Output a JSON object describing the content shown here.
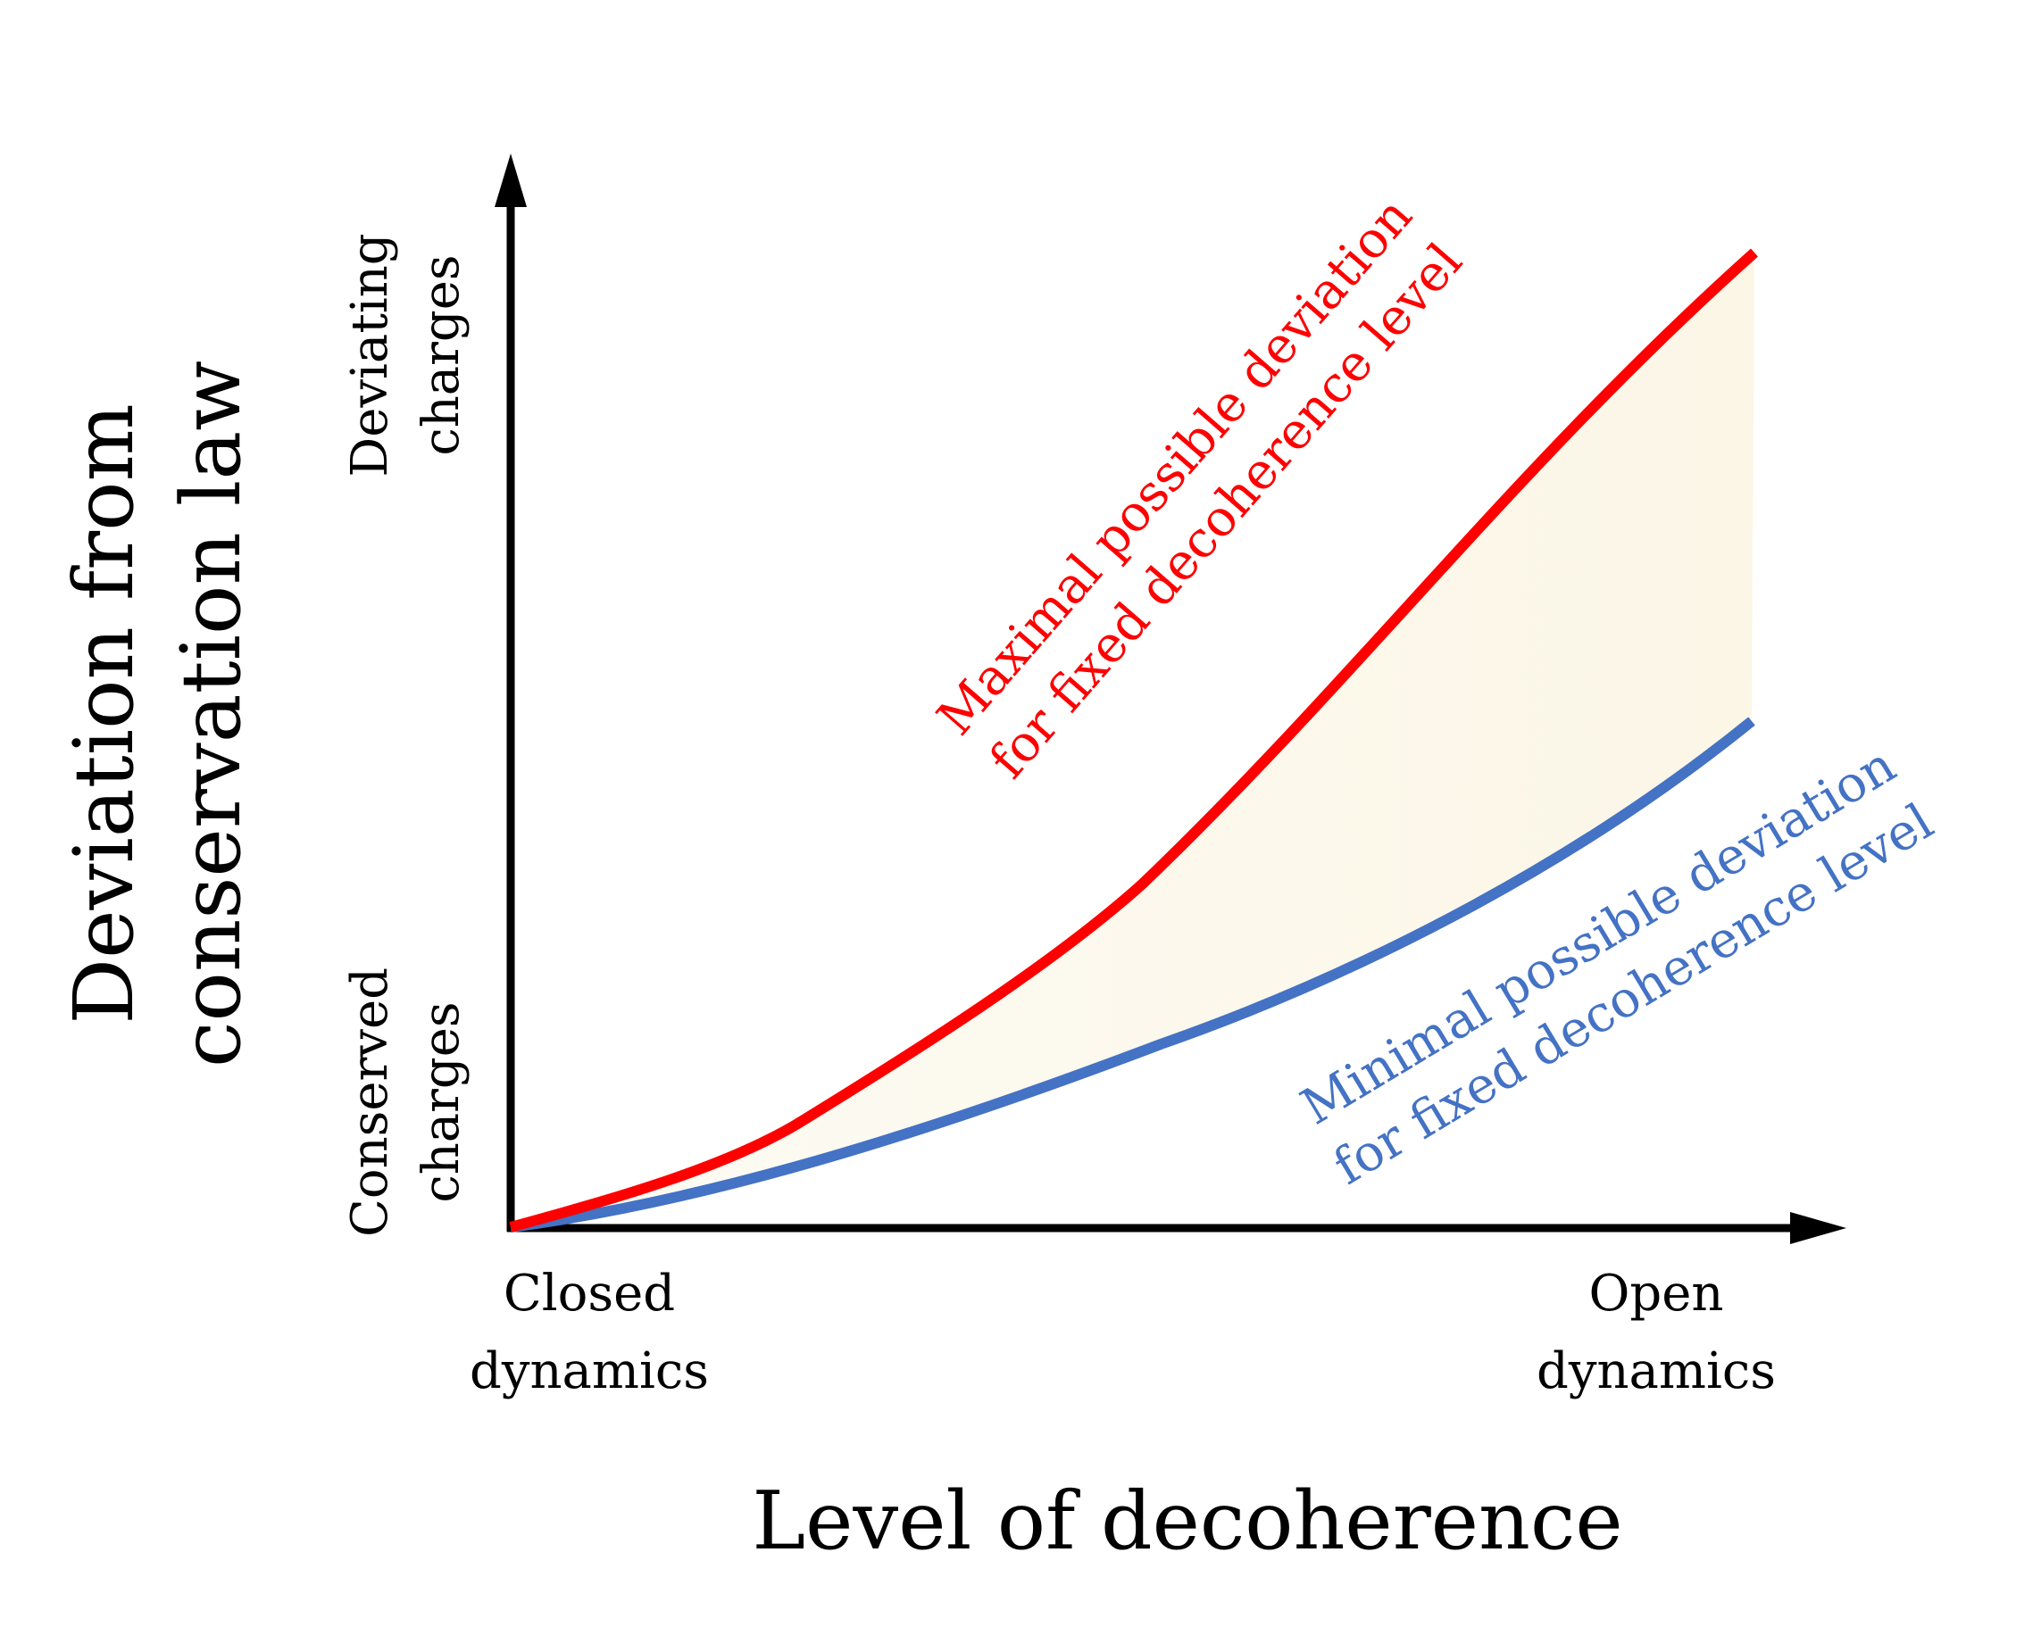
{
  "axes": {
    "y_title_line1": "Deviation from",
    "y_title_line2": "conservation law",
    "x_title": "Level of decoherence",
    "y_top_label_line1": "Deviating",
    "y_top_label_line2": "charges",
    "y_bottom_label_line1": "Conserved",
    "y_bottom_label_line2": "charges",
    "x_left_label_line1": "Closed",
    "x_left_label_line2": "dynamics",
    "x_right_label_line1": "Open",
    "x_right_label_line2": "dynamics"
  },
  "curves": {
    "max": {
      "label_line1": "Maximal possible deviation",
      "label_line2": "for fixed decoherence level",
      "color": "#ff0000"
    },
    "min": {
      "label_line1": "Minimal possible deviation",
      "label_line2": "for fixed decoherence level",
      "color": "#4472c4"
    }
  },
  "colors": {
    "axis": "#000000",
    "fill": "#fbf7eb"
  }
}
